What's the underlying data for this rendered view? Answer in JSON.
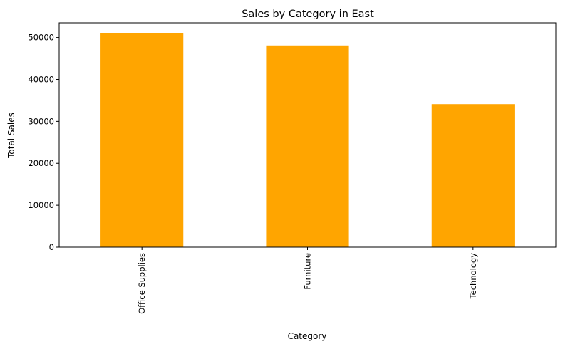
{
  "chart_data": {
    "type": "bar",
    "title": "Sales by Category in East",
    "xlabel": "Category",
    "ylabel": "Total Sales",
    "categories": [
      "Office Supplies",
      "Furniture",
      "Technology"
    ],
    "values": [
      51000,
      48100,
      34100
    ],
    "ylim": [
      0,
      53500
    ],
    "yticks": [
      0,
      10000,
      20000,
      30000,
      40000,
      50000
    ],
    "ytick_labels": [
      "0",
      "10000",
      "20000",
      "30000",
      "40000",
      "50000"
    ],
    "bar_color": "#FFA500",
    "grid": false,
    "legend": false
  }
}
